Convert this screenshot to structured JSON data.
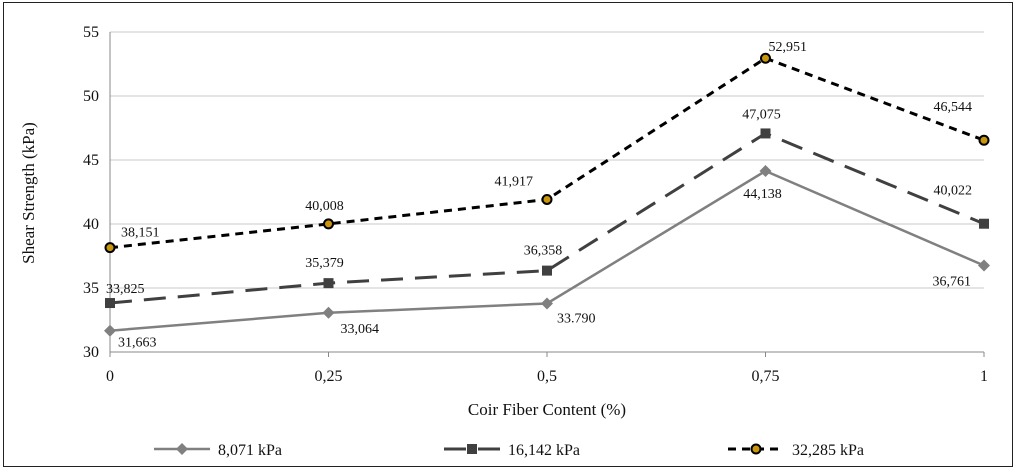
{
  "chart_data": {
    "type": "line",
    "title": "",
    "xlabel": "Coir Fiber Content (%)",
    "ylabel": "Shear Strength (kPa)",
    "categories": [
      "0",
      "0,25",
      "0,5",
      "0,75",
      "1"
    ],
    "ylim": [
      30,
      55
    ],
    "yticks": [
      "30",
      "35",
      "40",
      "45",
      "50",
      "55"
    ],
    "grid": "horizontal",
    "legend_position": "bottom",
    "series": [
      {
        "name": "8,071 kPa",
        "values": [
          31.663,
          33.064,
          33.79,
          44.138,
          36.761
        ],
        "labels": [
          "31,663",
          "33,064",
          "33.790",
          "44,138",
          "36,761"
        ],
        "color": "#808080",
        "line_style": "solid",
        "marker": "diamond"
      },
      {
        "name": "16,142 kPa",
        "values": [
          33.825,
          35.379,
          36.358,
          47.075,
          40.022
        ],
        "labels": [
          "33,825",
          "35,379",
          "36,358",
          "47,075",
          "40,022"
        ],
        "color": "#404040",
        "line_style": "long-dash",
        "marker": "square"
      },
      {
        "name": "32,285 kPa",
        "values": [
          38.151,
          40.008,
          41.917,
          52.951,
          46.544
        ],
        "labels": [
          "38,151",
          "40,008",
          "41,917",
          "52,951",
          "46,544"
        ],
        "color": "#000000",
        "marker_fill": "#c8960c",
        "line_style": "short-dash",
        "marker": "circle"
      }
    ]
  }
}
